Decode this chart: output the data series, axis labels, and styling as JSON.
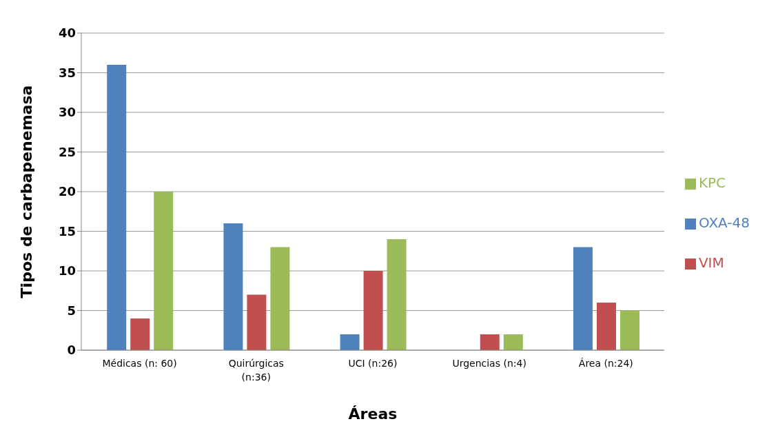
{
  "chart_data": {
    "type": "bar",
    "xlabel": "Áreas",
    "ylabel": "Tipos de carbapenemasa",
    "categories": [
      "Médicas (n: 60)",
      "Quirúrgicas (n:36)",
      "UCI (n:26)",
      "Urgencias (n:4)",
      "Área (n:24)"
    ],
    "series": [
      {
        "name": "OXA-48",
        "color": "#4f81bd",
        "values": [
          36,
          16,
          2,
          0,
          13
        ]
      },
      {
        "name": "VIM",
        "color": "#c0504d",
        "values": [
          4,
          7,
          10,
          2,
          6
        ]
      },
      {
        "name": "KPC",
        "color": "#9bbb59",
        "values": [
          20,
          13,
          14,
          2,
          5
        ]
      }
    ],
    "ylim": [
      0,
      40
    ],
    "yticks": [
      0,
      5,
      10,
      15,
      20,
      25,
      30,
      35,
      40
    ],
    "grid": "y",
    "legend": "right"
  }
}
